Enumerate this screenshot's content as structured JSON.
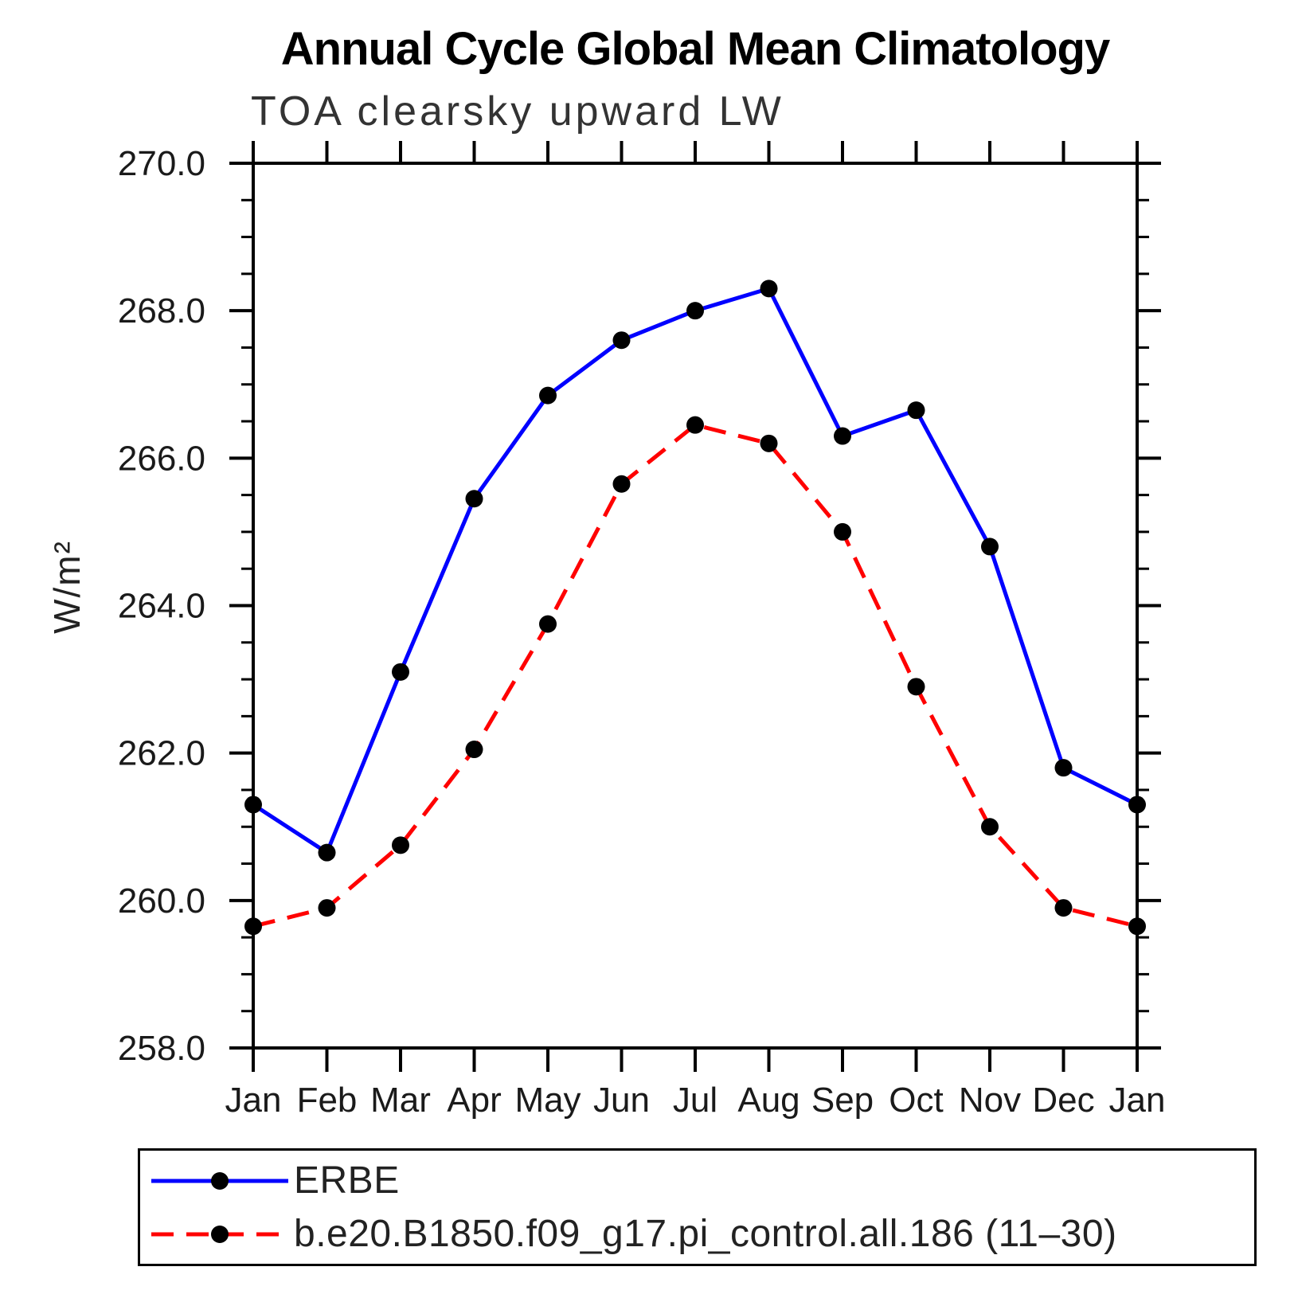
{
  "chart_data": {
    "type": "line",
    "title": "Annual Cycle Global Mean Climatology",
    "subtitle": "TOA clearsky upward LW",
    "xlabel": "",
    "ylabel": "W/m²",
    "ylim": [
      258.0,
      270.0
    ],
    "ytick_interval": 2.0,
    "yminor_interval": 0.5,
    "ytick_labels": [
      "258.0",
      "260.0",
      "262.0",
      "264.0",
      "266.0",
      "268.0",
      "270.0"
    ],
    "x_labels": [
      "Jan",
      "Feb",
      "Mar",
      "Apr",
      "May",
      "Jun",
      "Jul",
      "Aug",
      "Sep",
      "Oct",
      "Nov",
      "Dec",
      "Jan"
    ],
    "grid": false,
    "legend_position": "below",
    "axis_color": "#000000",
    "marker_color": "#000000",
    "series": [
      {
        "name": "ERBE",
        "color": "#0000ff",
        "line_style": "solid",
        "marker": "circle",
        "values": [
          261.3,
          260.65,
          263.1,
          265.45,
          266.85,
          267.6,
          268.0,
          268.3,
          266.3,
          266.65,
          264.8,
          261.8,
          261.3
        ]
      },
      {
        "name": "b.e20.B1850.f09_g17.pi_control.all.186 (11–30)",
        "color": "#ff0000",
        "line_style": "dashed",
        "marker": "circle",
        "values": [
          259.65,
          259.9,
          260.75,
          262.05,
          263.75,
          265.65,
          266.45,
          266.2,
          265.0,
          262.9,
          261.0,
          259.9,
          259.65
        ]
      }
    ]
  }
}
